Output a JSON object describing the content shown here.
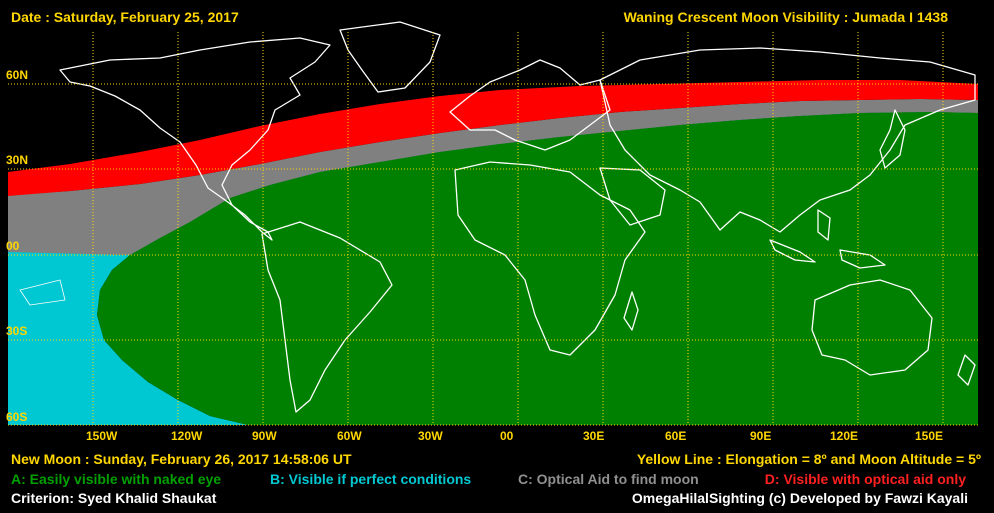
{
  "header": {
    "date": "Date : Saturday, February 25, 2017",
    "title": "Waning Crescent Moon Visibility : Jumada I 1438"
  },
  "map": {
    "latitude_labels": [
      "60N",
      "30N",
      "00",
      "30S",
      "60S"
    ],
    "longitude_labels": [
      "150W",
      "120W",
      "90W",
      "60W",
      "30W",
      "00",
      "30E",
      "60E",
      "90E",
      "120E",
      "150E"
    ],
    "colors": {
      "zone_a": "#008000",
      "zone_b": "#00c8d2",
      "zone_c": "#808080",
      "zone_d": "#ff0000",
      "coastline": "#ffffff",
      "grid": "#ffd700"
    }
  },
  "footer": {
    "new_moon": "New Moon : Sunday, February 26, 2017  14:58:06  UT",
    "yellow_line": "Yellow Line : Elongation = 8º and Moon Altitude = 5º",
    "legend_a": "A: Easily visible with naked eye",
    "legend_b": "B: Visible if perfect conditions",
    "legend_c": "C: Optical Aid to find moon",
    "legend_d": "D: Visible with optical aid only",
    "criterion": "Criterion: Syed Khalid Shaukat",
    "credit": "OmegaHilalSighting  (c)  Developed by Fawzi Kayali"
  }
}
